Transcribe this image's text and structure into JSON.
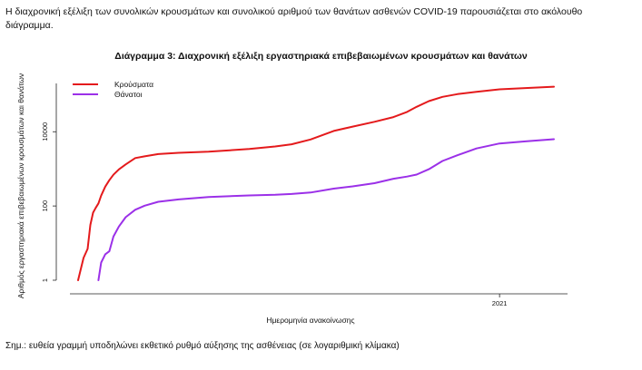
{
  "intro_text": "Η διαχρονική εξέλιξη των συνολικών κρουσμάτων και συνολικού αριθμού των θανάτων ασθενών COVID-19 παρουσιάζεται στο ακόλουθο διάγραμμα.",
  "footnote": "Σημ.: ευθεία γραμμή υποδηλώνει εκθετικό ρυθμό αύξησης της ασθένειας (σε λογαριθμική κλίμακα)",
  "colors": {
    "cases": "#e41a1c",
    "deaths": "#9b30e8"
  },
  "chart_data": {
    "type": "line",
    "title": "Διάγραμμα 3: Διαχρονική εξέλιξη εργαστηριακά επιβεβαιωμένων κρουσμάτων και θανάτων",
    "xlabel": "Ημερομηνία ανακοίνωσης",
    "ylabel": "Αριθμός εργαστηριακά επιβεβαιωμένων κρουσμάτων και θανάτων",
    "y_scale": "log",
    "ylim": [
      1,
      200000
    ],
    "yticks": [
      1,
      100,
      10000
    ],
    "ytick_labels": [
      "1",
      "100",
      "10000"
    ],
    "xlim": [
      "2020-02-20",
      "2021-02-20"
    ],
    "xticks": [
      "2021-01-01"
    ],
    "xtick_labels": [
      "2021"
    ],
    "legend_position": "top-left",
    "grid": false,
    "series": [
      {
        "name": "Κρούσματα",
        "key": "cases",
        "x": [
          "2020-02-26",
          "2020-03-01",
          "2020-03-04",
          "2020-03-06",
          "2020-03-08",
          "2020-03-10",
          "2020-03-12",
          "2020-03-14",
          "2020-03-17",
          "2020-03-20",
          "2020-03-23",
          "2020-03-27",
          "2020-04-01",
          "2020-04-08",
          "2020-04-15",
          "2020-04-25",
          "2020-05-10",
          "2020-06-01",
          "2020-07-01",
          "2020-07-20",
          "2020-08-01",
          "2020-08-15",
          "2020-09-01",
          "2020-09-15",
          "2020-10-01",
          "2020-10-15",
          "2020-10-25",
          "2020-11-01",
          "2020-11-10",
          "2020-11-20",
          "2020-12-01",
          "2020-12-15",
          "2021-01-01",
          "2021-01-20",
          "2021-02-10"
        ],
        "values": [
          1,
          4,
          7,
          31,
          66,
          89,
          117,
          190,
          331,
          495,
          695,
          966,
          1314,
          1955,
          2170,
          2506,
          2710,
          2918,
          3432,
          4007,
          4587,
          6177,
          10524,
          13730,
          18475,
          24868,
          34255,
          46892,
          66637,
          87034,
          103034,
          119429,
          138850,
          150000,
          163000
        ]
      },
      {
        "name": "Θάνατοι",
        "key": "deaths",
        "x": [
          "2020-03-12",
          "2020-03-14",
          "2020-03-17",
          "2020-03-20",
          "2020-03-23",
          "2020-03-27",
          "2020-04-01",
          "2020-04-08",
          "2020-04-15",
          "2020-04-25",
          "2020-05-10",
          "2020-06-01",
          "2020-07-01",
          "2020-07-20",
          "2020-08-01",
          "2020-08-15",
          "2020-09-01",
          "2020-09-15",
          "2020-10-01",
          "2020-10-15",
          "2020-10-25",
          "2020-11-01",
          "2020-11-10",
          "2020-11-20",
          "2020-12-01",
          "2020-12-15",
          "2021-01-01",
          "2021-01-20",
          "2021-02-10"
        ],
        "values": [
          1,
          3,
          5,
          6,
          15,
          28,
          50,
          79,
          102,
          130,
          150,
          175,
          192,
          200,
          210,
          230,
          293,
          338,
          410,
          540,
          620,
          703,
          975,
          1630,
          2321,
          3550,
          4838,
          5500,
          6300
        ]
      }
    ]
  }
}
